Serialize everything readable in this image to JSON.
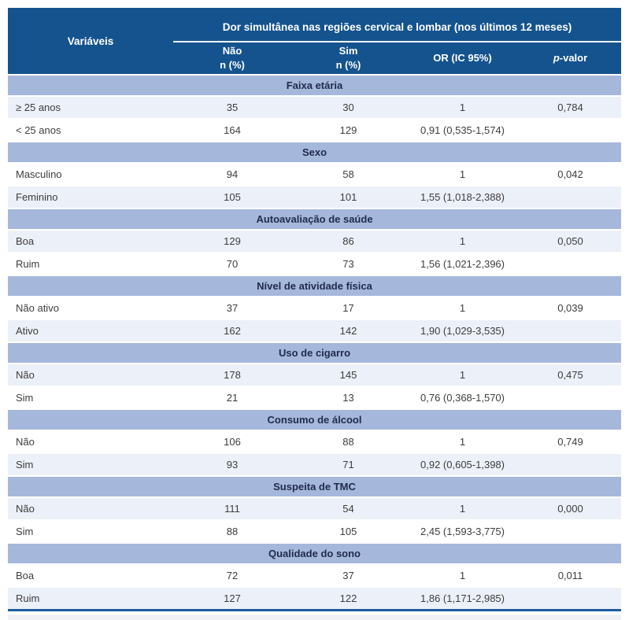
{
  "table": {
    "col1_header": "Variáveis",
    "span_header": "Dor simultânea nas regiões cervical e lombar (nos últimos 12 meses)",
    "columns": {
      "nao": {
        "line1": "Não",
        "line2": "n (%)"
      },
      "sim": {
        "line1": "Sim",
        "line2": "n (%)"
      },
      "or": {
        "line1": "OR (IC 95%)"
      },
      "p": {
        "italic": "p",
        "rest": "-valor"
      }
    },
    "sections": [
      {
        "title": "Faixa etária",
        "rows": [
          {
            "label": "≥ 25 anos",
            "nao": "35",
            "sim": "30",
            "or": "1",
            "p": "0,784"
          },
          {
            "label": "< 25 anos",
            "nao": "164",
            "sim": "129",
            "or": "0,91 (0,535-1,574)",
            "p": ""
          }
        ]
      },
      {
        "title": "Sexo",
        "rows": [
          {
            "label": "Masculino",
            "nao": "94",
            "sim": "58",
            "or": "1",
            "p": "0,042"
          },
          {
            "label": "Feminino",
            "nao": "105",
            "sim": "101",
            "or": "1,55 (1,018-2,388)",
            "p": ""
          }
        ]
      },
      {
        "title": "Autoavaliação de saúde",
        "rows": [
          {
            "label": "Boa",
            "nao": "129",
            "sim": "86",
            "or": "1",
            "p": "0,050"
          },
          {
            "label": "Ruim",
            "nao": "70",
            "sim": "73",
            "or": "1,56 (1,021-2,396)",
            "p": ""
          }
        ]
      },
      {
        "title": "Nível de atividade física",
        "rows": [
          {
            "label": "Não ativo",
            "nao": "37",
            "sim": "17",
            "or": "1",
            "p": "0,039"
          },
          {
            "label": "Ativo",
            "nao": "162",
            "sim": "142",
            "or": "1,90 (1,029-3,535)",
            "p": ""
          }
        ]
      },
      {
        "title": "Uso de cigarro",
        "rows": [
          {
            "label": "Não",
            "nao": "178",
            "sim": "145",
            "or": "1",
            "p": "0,475"
          },
          {
            "label": "Sim",
            "nao": "21",
            "sim": "13",
            "or": "0,76 (0,368-1,570)",
            "p": ""
          }
        ]
      },
      {
        "title": "Consumo de álcool",
        "rows": [
          {
            "label": "Não",
            "nao": "106",
            "sim": "88",
            "or": "1",
            "p": "0,749"
          },
          {
            "label": "Sim",
            "nao": "93",
            "sim": "71",
            "or": "0,92 (0,605-1,398)",
            "p": ""
          }
        ]
      },
      {
        "title": "Suspeita de TMC",
        "rows": [
          {
            "label": "Não",
            "nao": "111",
            "sim": "54",
            "or": "1",
            "p": "0,000"
          },
          {
            "label": "Sim",
            "nao": "88",
            "sim": "105",
            "or": "2,45 (1,593-3,775)",
            "p": ""
          }
        ]
      },
      {
        "title": "Qualidade do sono",
        "rows": [
          {
            "label": "Boa",
            "nao": "72",
            "sim": "37",
            "or": "1",
            "p": "0,011"
          },
          {
            "label": "Ruim",
            "nao": "127",
            "sim": "122",
            "or": "1,86 (1,171-2,985)",
            "p": ""
          }
        ]
      }
    ]
  },
  "colors": {
    "header_blue": "#14538E",
    "section_blue": "#A6B7DC",
    "alt_row": "#ECF0F8",
    "bottom_border": "#1C5C9E"
  },
  "chart_data": {
    "type": "table",
    "title": "Dor simultânea nas regiões cervical e lombar (nos últimos 12 meses)",
    "columns": [
      "Variáveis",
      "Não n (%)",
      "Sim n (%)",
      "OR (IC 95%)",
      "p-valor"
    ],
    "rows": [
      [
        "Faixa etária: ≥ 25 anos",
        "35",
        "30",
        "1",
        "0,784"
      ],
      [
        "Faixa etária: < 25 anos",
        "164",
        "129",
        "0,91 (0,535-1,574)",
        ""
      ],
      [
        "Sexo: Masculino",
        "94",
        "58",
        "1",
        "0,042"
      ],
      [
        "Sexo: Feminino",
        "105",
        "101",
        "1,55 (1,018-2,388)",
        ""
      ],
      [
        "Autoavaliação de saúde: Boa",
        "129",
        "86",
        "1",
        "0,050"
      ],
      [
        "Autoavaliação de saúde: Ruim",
        "70",
        "73",
        "1,56 (1,021-2,396)",
        ""
      ],
      [
        "Nível de atividade física: Não ativo",
        "37",
        "17",
        "1",
        "0,039"
      ],
      [
        "Nível de atividade física: Ativo",
        "162",
        "142",
        "1,90 (1,029-3,535)",
        ""
      ],
      [
        "Uso de cigarro: Não",
        "178",
        "145",
        "1",
        "0,475"
      ],
      [
        "Uso de cigarro: Sim",
        "21",
        "13",
        "0,76 (0,368-1,570)",
        ""
      ],
      [
        "Consumo de álcool: Não",
        "106",
        "88",
        "1",
        "0,749"
      ],
      [
        "Consumo de álcool: Sim",
        "93",
        "71",
        "0,92 (0,605-1,398)",
        ""
      ],
      [
        "Suspeita de TMC: Não",
        "111",
        "54",
        "1",
        "0,000"
      ],
      [
        "Suspeita de TMC: Sim",
        "88",
        "105",
        "2,45 (1,593-3,775)",
        ""
      ],
      [
        "Qualidade do sono: Boa",
        "72",
        "37",
        "1",
        "0,011"
      ],
      [
        "Qualidade do sono: Ruim",
        "127",
        "122",
        "1,86 (1,171-2,985)",
        ""
      ]
    ]
  }
}
